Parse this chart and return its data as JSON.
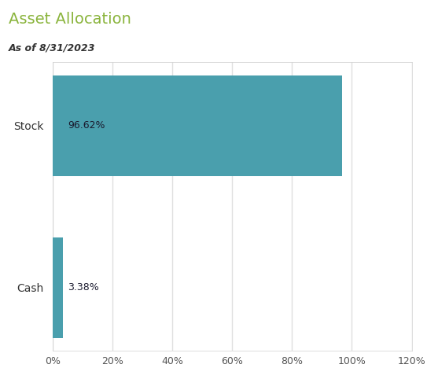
{
  "title": "Asset Allocation",
  "subtitle": "As of 8/31/2023",
  "categories": [
    "Cash",
    "Stock"
  ],
  "values": [
    3.38,
    96.62
  ],
  "bar_color": "#4a9fad",
  "label_color": "#1a1a2e",
  "title_color": "#8ab43c",
  "subtitle_color": "#333333",
  "bg_color": "#ffffff",
  "chart_bg_color": "#ffffff",
  "grid_color": "#e0e0e0",
  "xlim": [
    0,
    120
  ],
  "xticks": [
    0,
    20,
    40,
    60,
    80,
    100,
    120
  ],
  "bar_height": 0.62,
  "figsize": [
    5.57,
    4.96
  ],
  "dpi": 100
}
